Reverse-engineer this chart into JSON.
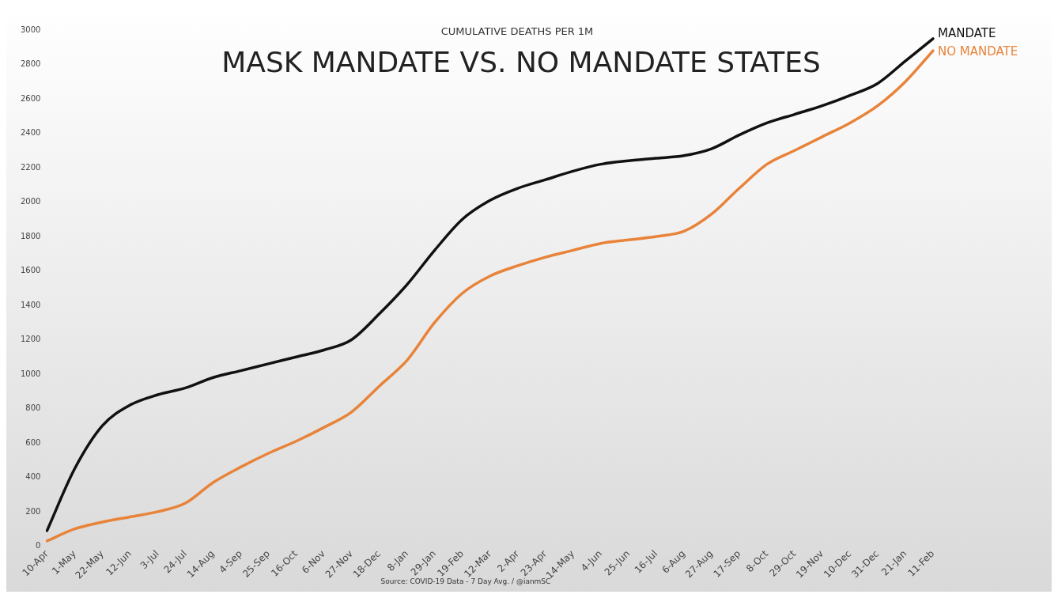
{
  "chart_data": {
    "type": "line",
    "title": "MASK MANDATE VS. NO MANDATE STATES",
    "subtitle": "CUMULATIVE DEATHS PER 1M",
    "categories": [
      "10-Apr",
      "1-May",
      "22-May",
      "12-Jun",
      "3-Jul",
      "24-Jul",
      "14-Aug",
      "4-Sep",
      "25-Sep",
      "16-Oct",
      "6-Nov",
      "27-Nov",
      "18-Dec",
      "8-Jan",
      "29-Jan",
      "19-Feb",
      "12-Mar",
      "2-Apr",
      "23-Apr",
      "14-May",
      "4-Jun",
      "25-Jun",
      "16-Jul",
      "6-Aug",
      "27-Aug",
      "17-Sep",
      "8-Oct",
      "29-Oct",
      "19-Nov",
      "10-Dec",
      "31-Dec",
      "21-Jan",
      "11-Feb"
    ],
    "series": [
      {
        "name": "MANDATE",
        "color": "#111111",
        "values": [
          90,
          450,
          700,
          820,
          880,
          920,
          980,
          1020,
          1060,
          1100,
          1140,
          1200,
          1350,
          1520,
          1720,
          1900,
          2010,
          2080,
          2130,
          2180,
          2220,
          2240,
          2255,
          2270,
          2310,
          2390,
          2460,
          2510,
          2560,
          2620,
          2690,
          2820,
          2950
        ]
      },
      {
        "name": "NO MANDATE",
        "color": "#e8833a",
        "values": [
          30,
          100,
          140,
          170,
          200,
          250,
          370,
          460,
          540,
          610,
          690,
          780,
          930,
          1080,
          1300,
          1470,
          1570,
          1630,
          1680,
          1720,
          1760,
          1780,
          1800,
          1830,
          1930,
          2080,
          2220,
          2300,
          2380,
          2460,
          2560,
          2700,
          2880
        ]
      }
    ],
    "ylim": [
      0,
      3000
    ],
    "yticks": [
      0,
      200,
      400,
      600,
      800,
      1000,
      1200,
      1400,
      1600,
      1800,
      2000,
      2200,
      2400,
      2600,
      2800,
      3000
    ],
    "grid": false,
    "legend": false,
    "marker": "none",
    "line_style": "solid",
    "annotations": [
      "Source: COVID-19 Data - 7 Day Avg. / @ianmSC"
    ]
  }
}
